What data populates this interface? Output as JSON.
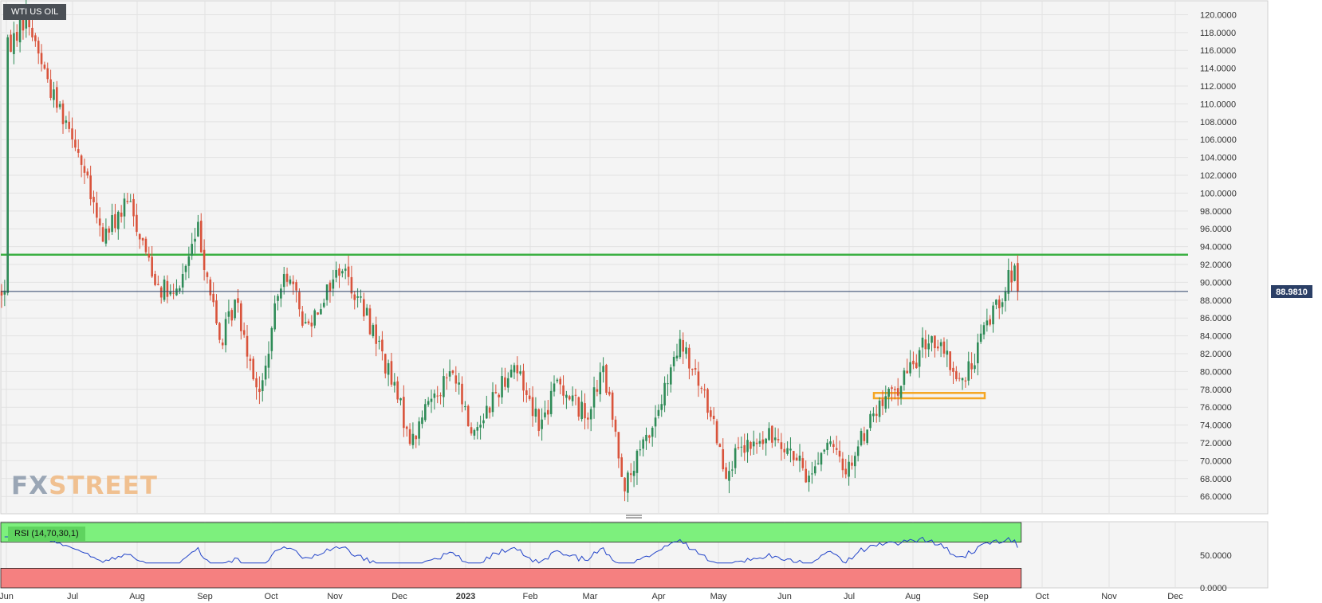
{
  "badge": "WTI US OIL",
  "rsi_label": "RSI (14,70,30,1)",
  "watermark": {
    "fx": "FX",
    "street": "STREET"
  },
  "colors": {
    "up": "#2e8b57",
    "down": "#d9533b",
    "resistance_line": "#3cb043",
    "support_zone": "#f5a623",
    "price_line": "#2b3f66",
    "rsi_line": "#2143c9",
    "rsi_overbought": "#7df07d",
    "rsi_oversold": "#f58080"
  },
  "chart_data": [
    {
      "type": "candlestick",
      "instrument": "WTI US OIL",
      "timeframe": "daily",
      "x_tick_labels": [
        "Jun",
        "Jul",
        "Aug",
        "Sep",
        "Oct",
        "Nov",
        "Dec",
        "2023",
        "Feb",
        "Mar",
        "Apr",
        "May",
        "Jun",
        "Jul",
        "Aug",
        "Sep",
        "Oct",
        "Nov",
        "Dec"
      ],
      "y_tick_labels": [
        "120.0000",
        "118.0000",
        "116.0000",
        "114.0000",
        "112.0000",
        "110.0000",
        "108.0000",
        "106.0000",
        "104.0000",
        "102.0000",
        "100.0000",
        "98.0000",
        "96.0000",
        "94.0000",
        "92.0000",
        "90.0000",
        "88.0000",
        "86.0000",
        "84.0000",
        "82.0000",
        "80.0000",
        "78.0000",
        "76.0000",
        "74.0000",
        "72.0000",
        "70.0000",
        "68.0000",
        "66.0000"
      ],
      "ylim": [
        64.5,
        121.2
      ],
      "grid": true,
      "current_price": 88.981,
      "current_price_label": "88.9810",
      "horizontal_lines": [
        {
          "value": 93.1,
          "color": "#3cb043"
        }
      ],
      "zones": [
        {
          "from_month": "Jul",
          "to_month": "Sep",
          "low": 77.0,
          "high": 77.6,
          "color": "#f5a623"
        }
      ],
      "path_points": [
        [
          "2022-06-01",
          116
        ],
        [
          "2022-06-10",
          120
        ],
        [
          "2022-06-22",
          111
        ],
        [
          "2022-07-01",
          107
        ],
        [
          "2022-07-15",
          95
        ],
        [
          "2022-07-28",
          99
        ],
        [
          "2022-08-10",
          90
        ],
        [
          "2022-08-18",
          88
        ],
        [
          "2022-08-29",
          96
        ],
        [
          "2022-09-08",
          83
        ],
        [
          "2022-09-15",
          88
        ],
        [
          "2022-09-26",
          77
        ],
        [
          "2022-10-07",
          92
        ],
        [
          "2022-10-18",
          85
        ],
        [
          "2022-11-04",
          92
        ],
        [
          "2022-11-20",
          84
        ],
        [
          "2022-12-07",
          72
        ],
        [
          "2022-12-15",
          77
        ],
        [
          "2022-12-26",
          80
        ],
        [
          "2023-01-04",
          73
        ],
        [
          "2023-01-24",
          81
        ],
        [
          "2023-02-06",
          74
        ],
        [
          "2023-02-14",
          79
        ],
        [
          "2023-02-27",
          75
        ],
        [
          "2023-03-07",
          80
        ],
        [
          "2023-03-17",
          67
        ],
        [
          "2023-03-31",
          75
        ],
        [
          "2023-04-12",
          83
        ],
        [
          "2023-04-28",
          75
        ],
        [
          "2023-05-04",
          69
        ],
        [
          "2023-05-12",
          71
        ],
        [
          "2023-05-29",
          73
        ],
        [
          "2023-06-12",
          68
        ],
        [
          "2023-06-20",
          72
        ],
        [
          "2023-06-30",
          69
        ],
        [
          "2023-07-12",
          75
        ],
        [
          "2023-07-24",
          78
        ],
        [
          "2023-08-09",
          84
        ],
        [
          "2023-08-24",
          78.5
        ],
        [
          "2023-09-05",
          86
        ],
        [
          "2023-09-15",
          90.5
        ],
        [
          "2023-09-18",
          91.5
        ],
        [
          "2023-09-20",
          89
        ]
      ]
    },
    {
      "type": "line",
      "name": "RSI (14,70,30,1)",
      "y_tick_labels": [
        "50.0000",
        "0.0000"
      ],
      "overbought": 70,
      "oversold": 30,
      "ylim": [
        0,
        100
      ]
    }
  ]
}
